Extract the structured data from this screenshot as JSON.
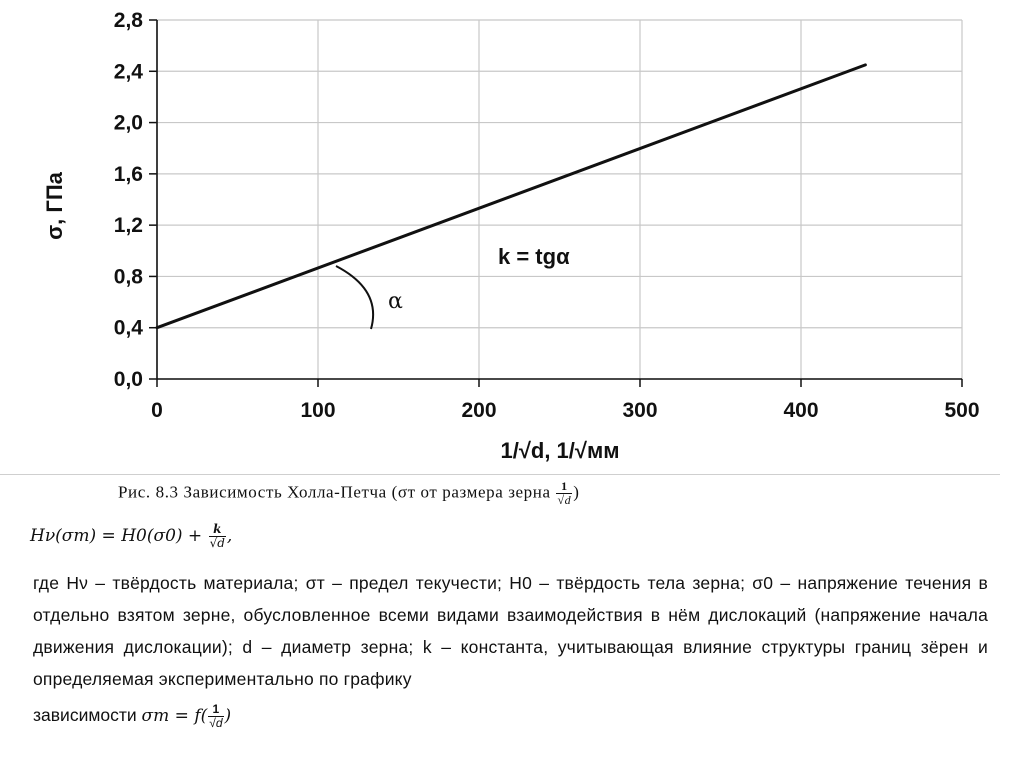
{
  "chart_data": {
    "type": "line",
    "xlabel": "1/√d, 1/√мм",
    "ylabel": "σ, ГПа",
    "xlim": [
      0,
      500
    ],
    "ylim": [
      0,
      2.8
    ],
    "x_ticks": [
      "0",
      "100",
      "200",
      "300",
      "400",
      "500"
    ],
    "y_ticks": [
      "0,0",
      "0,4",
      "0,8",
      "1,2",
      "1,6",
      "2,0",
      "2,4",
      "2,8"
    ],
    "grid": true,
    "series": [
      {
        "x": [
          0,
          440
        ],
        "y": [
          0.4,
          2.45
        ]
      }
    ],
    "annotations": {
      "formula": "k = tgα",
      "angle": "α"
    }
  },
  "caption": {
    "text": "Рис. 8.3 Зависимость Холла-Петча (σт от размера зерна",
    "frac_num": "1",
    "frac_den": "√d",
    "close": ")"
  },
  "formula": {
    "lhs": "Hν(σт) = H0(σ0) +",
    "frac_num": "k",
    "frac_den": "√d",
    "tail": ","
  },
  "description": "где Hν – твёрдость материала; σт – предел текучести; H0 – твёрдость тела зерна; σ0 – напряжение течения в отдельно взятом зерне, обусловленное всеми видами взаимодействия в нём дислокаций (напряжение начала движения дислокации); d – диаметр зерна; k – константа, учитывающая влияние структуры границ зёрен и определяемая экспериментально по графику",
  "last_line": {
    "text": "зависимости",
    "symbol": "σт = f(",
    "frac_num": "1",
    "frac_den": "√d",
    "close": ")"
  }
}
